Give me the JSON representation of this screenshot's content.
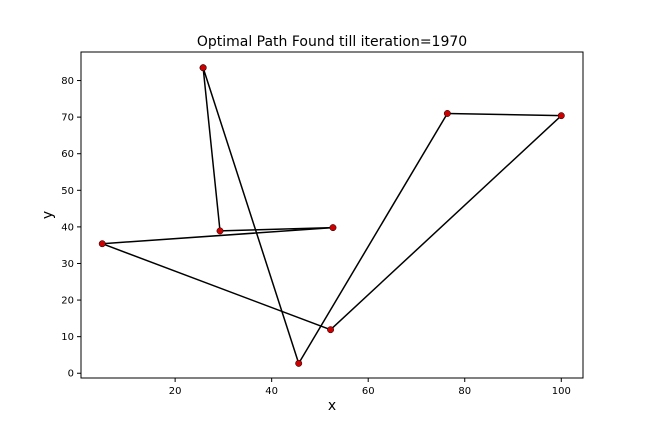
{
  "chart_data": {
    "type": "line",
    "title": "Optimal Path Found till iteration=1970",
    "xlabel": "x",
    "ylabel": "y",
    "xlim": [
      0.5,
      104.5
    ],
    "ylim": [
      -1.3,
      87.8
    ],
    "xticks": [
      20,
      40,
      60,
      80,
      100
    ],
    "yticks": [
      0,
      10,
      20,
      30,
      40,
      50,
      60,
      70,
      80
    ],
    "grid": false,
    "legend": "none",
    "series": [
      {
        "path_color": "#000000",
        "marker_color": "#cc0000",
        "points": [
          {
            "x": 25.8,
            "y": 83.5
          },
          {
            "x": 29.3,
            "y": 38.9
          },
          {
            "x": 52.7,
            "y": 39.8
          },
          {
            "x": 4.9,
            "y": 35.4
          },
          {
            "x": 52.2,
            "y": 11.9
          },
          {
            "x": 100.0,
            "y": 70.4
          },
          {
            "x": 76.4,
            "y": 71.0
          },
          {
            "x": 45.6,
            "y": 2.7
          },
          {
            "x": 25.8,
            "y": 83.5
          }
        ]
      }
    ]
  }
}
